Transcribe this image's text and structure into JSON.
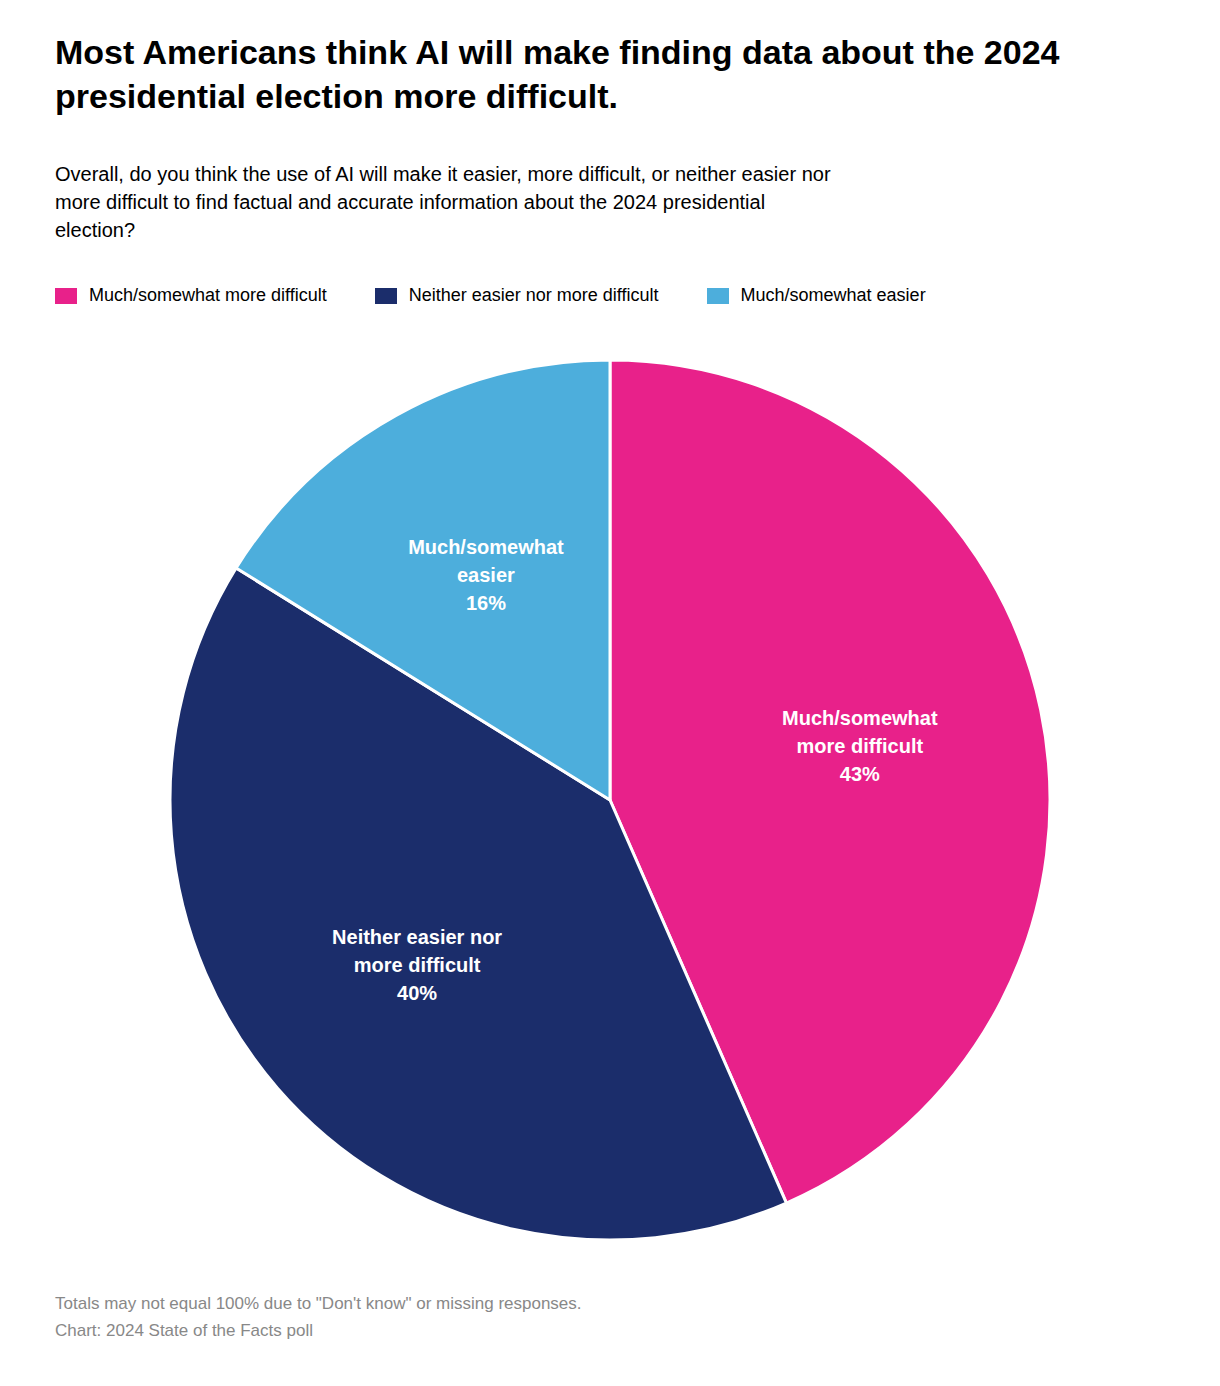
{
  "chart_data": {
    "type": "pie",
    "title": "Most Americans think AI will make finding data about the 2024\npresidential election more difficult.",
    "subtitle": "Overall, do you think the use of AI will make it easier, more difficult, or neither easier nor\nmore difficult to find factual and accurate information about the 2024 presidential\nelection?",
    "categories": [
      "Much/somewhat\nmore difficult",
      "Neither easier nor\nmore difficult",
      "Much/somewhat\neasier"
    ],
    "values": [
      43,
      40,
      16
    ],
    "value_labels": [
      "43%",
      "40%",
      "16%"
    ],
    "colors": [
      "#E8218A",
      "#1B2D6B",
      "#4DAEDC"
    ],
    "legend_labels": [
      "Much/somewhat more difficult",
      "Neither easier nor more difficult",
      "Much/somewhat easier"
    ],
    "legend": "top",
    "data_labels": true,
    "notes": [
      "Totals may not equal 100% due to \"Don't know\" or missing responses.",
      "Chart: 2024 State of the Facts poll"
    ]
  }
}
